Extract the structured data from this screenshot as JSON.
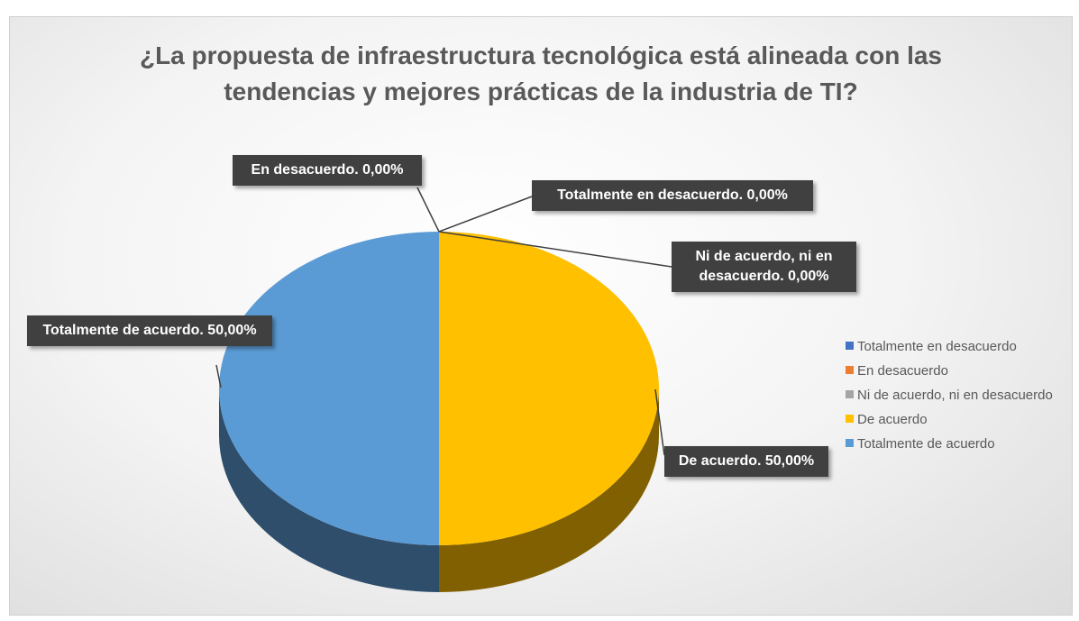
{
  "chart_data": {
    "type": "pie",
    "title": "¿La propuesta de infraestructura tecnológica está alineada con las tendencias y mejores prácticas de la industria de TI?",
    "categories": [
      "Totalmente en desacuerdo",
      "En desacuerdo",
      "Ni de acuerdo, ni en desacuerdo",
      "De acuerdo",
      "Totalmente de acuerdo"
    ],
    "values": [
      0,
      0,
      0,
      50,
      50
    ],
    "value_labels": [
      "Totalmente en desacuerdo. 0,00%",
      "En desacuerdo. 0,00%",
      "Ni de acuerdo, ni en desacuerdo. 0,00%",
      "De acuerdo. 50,00%",
      "Totalmente de acuerdo. 50,00%"
    ],
    "colors": [
      "#4472c4",
      "#ed7d31",
      "#a5a5a5",
      "#ffc000",
      "#5b9bd5"
    ],
    "legend": "right"
  }
}
